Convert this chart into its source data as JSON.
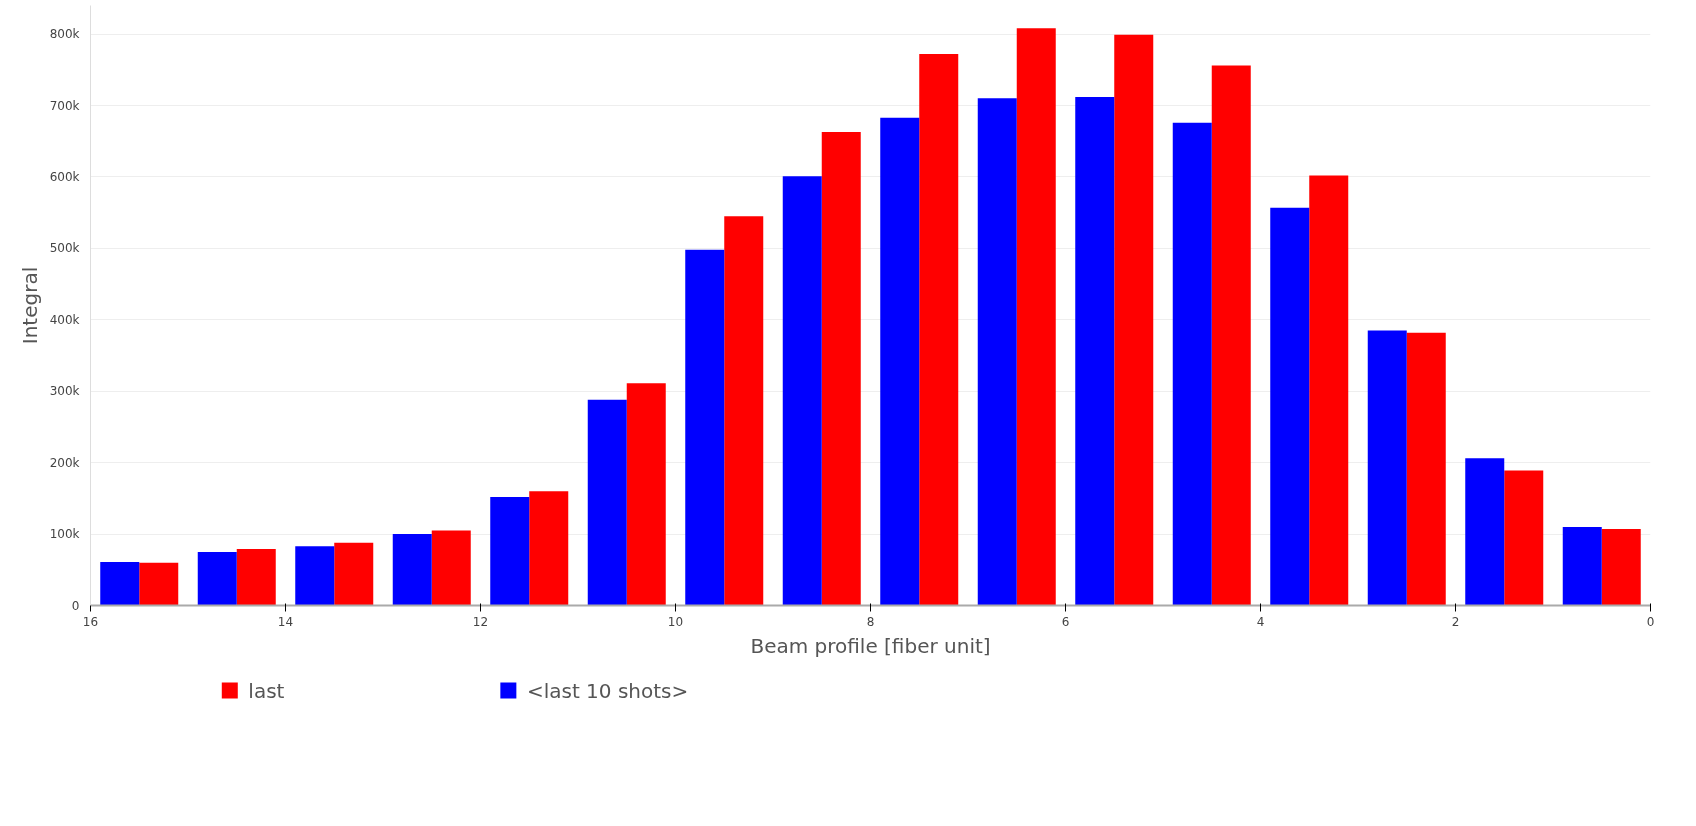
{
  "chart_data": {
    "type": "bar",
    "xlabel": "Beam profile [fiber unit]",
    "ylabel": "Integral",
    "x": [
      15.5,
      14.5,
      13.5,
      12.5,
      11.5,
      10.5,
      9.5,
      8.5,
      7.5,
      6.5,
      5.5,
      4.5,
      3.5,
      2.5,
      1.5,
      0.5
    ],
    "series": [
      {
        "name": "last",
        "color": "#ff0000",
        "values": [
          60000,
          79000,
          88000,
          105000,
          160000,
          311000,
          545000,
          663000,
          772000,
          808000,
          799000,
          756000,
          602000,
          382000,
          189000,
          107000
        ]
      },
      {
        "name": "<last 10 shots>",
        "color": "#0000ff",
        "values": [
          61000,
          75000,
          83000,
          100000,
          152000,
          288000,
          498000,
          601000,
          683000,
          710000,
          712000,
          676000,
          557000,
          385000,
          206000,
          110000
        ]
      }
    ],
    "xlim": [
      16,
      0
    ],
    "xticks": [
      16,
      14,
      12,
      10,
      8,
      6,
      4,
      2,
      0
    ],
    "ylim": [
      0,
      840000
    ],
    "yticks": [
      0,
      {
        "value": 100000,
        "label": "100k"
      },
      {
        "value": 200000,
        "label": "200k"
      },
      {
        "value": 300000,
        "label": "300k"
      },
      {
        "value": 400000,
        "label": "400k"
      },
      {
        "value": 500000,
        "label": "500k"
      },
      {
        "value": 600000,
        "label": "600k"
      },
      {
        "value": 700000,
        "label": "700k"
      },
      {
        "value": 800000,
        "label": "800k"
      }
    ],
    "grid": "y",
    "legend": "bottom left"
  }
}
